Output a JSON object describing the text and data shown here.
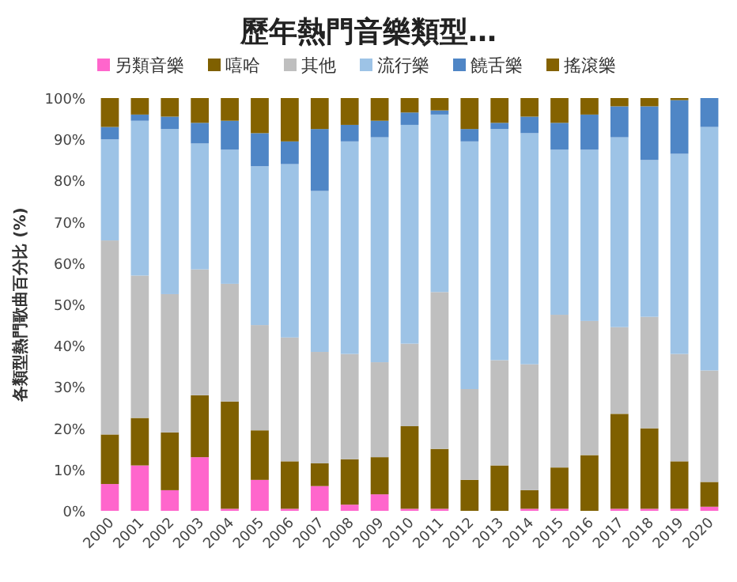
{
  "chart_data": {
    "type": "bar",
    "stacked": true,
    "title": "歷年熱門音樂類型…",
    "ylabel": "各類型熱門歌曲百分比 (%)",
    "legend": "top",
    "grid": false,
    "categories": [
      "2000",
      "2001",
      "2002",
      "2003",
      "2004",
      "2005",
      "2006",
      "2007",
      "2008",
      "2009",
      "2010",
      "2011",
      "2012",
      "2013",
      "2014",
      "2015",
      "2016",
      "2017",
      "2018",
      "2019",
      "2020"
    ],
    "ylim": [
      0,
      100
    ],
    "yticks": [
      {
        "value": 0,
        "label": "0%"
      },
      {
        "value": 10,
        "label": "10%"
      },
      {
        "value": 20,
        "label": "20%"
      },
      {
        "value": 30,
        "label": "30%"
      },
      {
        "value": 40,
        "label": "40%"
      },
      {
        "value": 50,
        "label": "50%"
      },
      {
        "value": 60,
        "label": "60%"
      },
      {
        "value": 70,
        "label": "70%"
      },
      {
        "value": 80,
        "label": "80%"
      },
      {
        "value": 90,
        "label": "90%"
      },
      {
        "value": 100,
        "label": "100%"
      }
    ],
    "series": [
      {
        "name": "另類音樂",
        "color": "#ff66cc",
        "values": [
          6.5,
          11,
          5,
          13,
          0.5,
          7.5,
          0.5,
          6,
          1.5,
          4,
          0.5,
          0.5,
          0,
          0,
          0.5,
          0.5,
          0,
          0.5,
          0.5,
          0.5,
          1
        ]
      },
      {
        "name": "嘻哈",
        "color": "#7f6000",
        "values": [
          12,
          11.5,
          14,
          15,
          26,
          12,
          11.5,
          5.5,
          11,
          9,
          20,
          14.5,
          7.5,
          11,
          4.5,
          10,
          13.5,
          23,
          19.5,
          11.5,
          6
        ]
      },
      {
        "name": "其他",
        "color": "#bfbfbf",
        "values": [
          47,
          34.5,
          33.5,
          30.5,
          28.5,
          25.5,
          30,
          27,
          25.5,
          23,
          20,
          38,
          22,
          25.5,
          30.5,
          37,
          32.5,
          21,
          27,
          26,
          27
        ]
      },
      {
        "name": "流行樂",
        "color": "#9dc3e6",
        "values": [
          24.5,
          37.5,
          40,
          30.5,
          32.5,
          38.5,
          42,
          39,
          51.5,
          54.5,
          53,
          43,
          60,
          56,
          56,
          40,
          41.5,
          46,
          38,
          48.5,
          59
        ]
      },
      {
        "name": "饒舌樂",
        "color": "#4f86c6",
        "values": [
          3,
          1.5,
          3,
          5,
          7,
          8,
          5.5,
          15,
          4,
          4,
          3,
          1,
          3,
          1.5,
          4,
          6.5,
          8.5,
          7.5,
          13,
          13,
          7
        ]
      },
      {
        "name": "搖滾樂",
        "color": "#846200",
        "values": [
          7,
          4,
          4.5,
          6,
          5.5,
          8.5,
          10.5,
          7.5,
          6.5,
          5.5,
          3.5,
          3,
          7.5,
          6,
          4.5,
          6,
          4,
          2,
          2,
          0.5,
          0
        ]
      }
    ]
  }
}
